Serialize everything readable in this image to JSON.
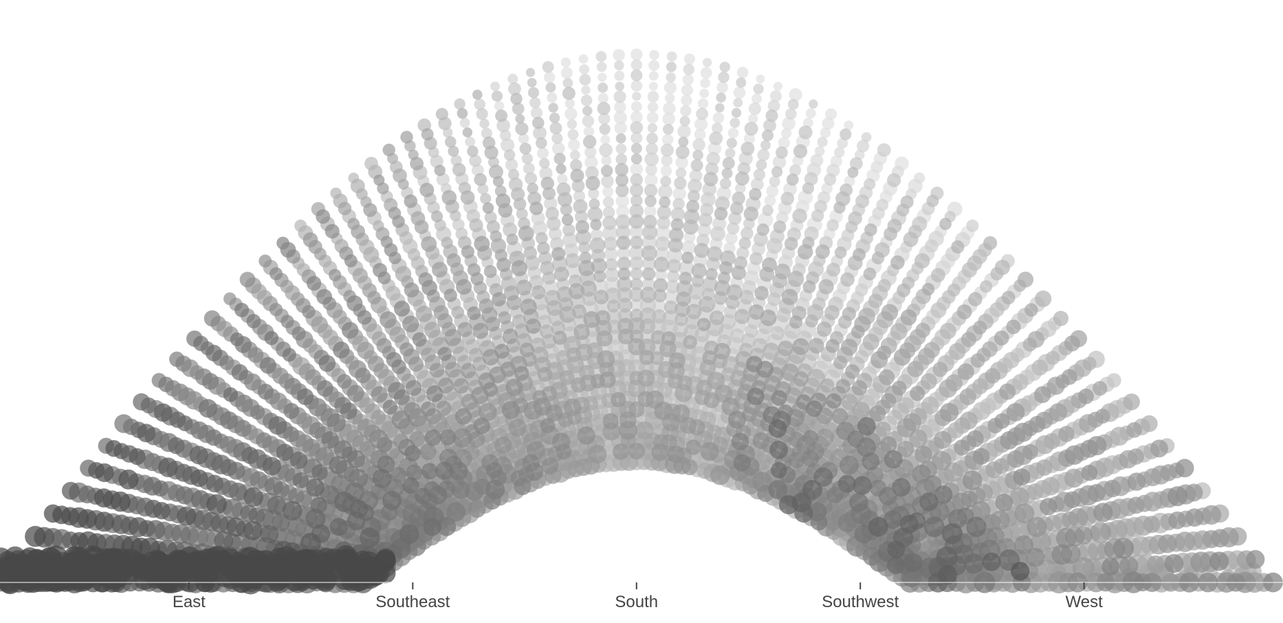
{
  "chart_data": {
    "type": "scatter",
    "title": "",
    "xlabel": "",
    "ylabel": "",
    "x_ticks": [
      {
        "label": "East",
        "azimuth": 90
      },
      {
        "label": "Southeast",
        "azimuth": 135
      },
      {
        "label": "South",
        "azimuth": 180
      },
      {
        "label": "Southwest",
        "azimuth": 225
      },
      {
        "label": "West",
        "azimuth": 270
      }
    ],
    "xlim": [
      52,
      310
    ],
    "ylim": [
      0,
      84
    ],
    "grid": false,
    "legend": "none",
    "y_axis_shown": false,
    "series": [
      {
        "outer_arc_peak_elevation": 83,
        "inner_arc_peak_elevation": 19,
        "rising_azimuth": 52,
        "setting_azimuth": 308
      }
    ],
    "colors": {
      "dark": "#474747",
      "mid": "#8a8a8a",
      "light": "#dcdcdc",
      "axis": "#444444"
    }
  }
}
